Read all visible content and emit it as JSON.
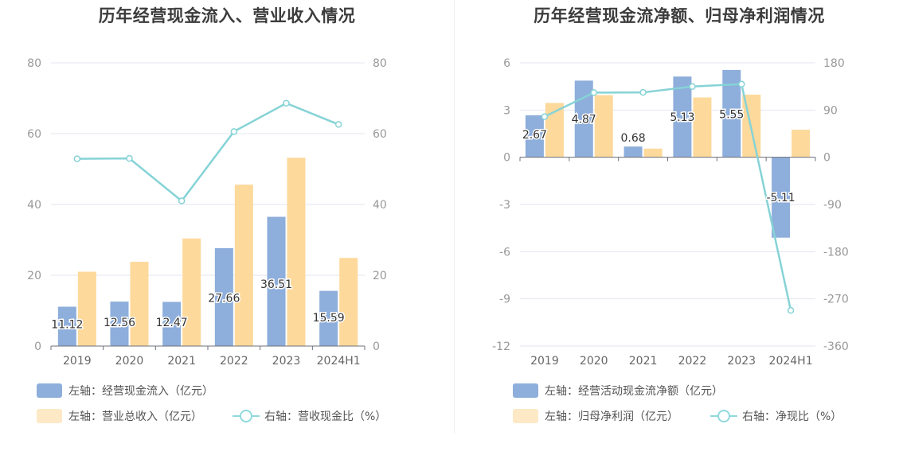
{
  "colors": {
    "bar1": "#8eaedb",
    "bar2": "#fdd99c",
    "line": "#86d3d6",
    "grid": "#e3e6ef",
    "axis": "#999999",
    "label": "#333333"
  },
  "chart_data": [
    {
      "type": "bar",
      "title": "历年经营现金流入、营业收入情况",
      "categories": [
        "2019",
        "2020",
        "2021",
        "2022",
        "2023",
        "2024H1"
      ],
      "y_left": {
        "min": 0,
        "max": 80,
        "ticks": [
          "0",
          "20",
          "40",
          "60",
          "80"
        ]
      },
      "y_right": {
        "min": 0,
        "max": 80,
        "ticks": [
          "0",
          "20",
          "40",
          "60",
          "80"
        ]
      },
      "series": [
        {
          "name": "左轴：经营现金流入（亿元）",
          "type": "bar",
          "axis": "left",
          "values": [
            11.12,
            12.56,
            12.47,
            27.66,
            36.51,
            15.59
          ],
          "labels": [
            "11.12",
            "12.56",
            "12.47",
            "27.66",
            "36.51",
            "15.59"
          ]
        },
        {
          "name": "左轴：营业总收入（亿元）",
          "type": "bar",
          "axis": "left",
          "values": [
            21.0,
            23.8,
            30.4,
            45.6,
            53.2,
            24.9
          ]
        },
        {
          "name": "右轴：营收现金比（%）",
          "type": "line",
          "axis": "right",
          "values": [
            52.9,
            53.0,
            41.0,
            60.6,
            68.6,
            62.6
          ]
        }
      ],
      "grid": true,
      "legend_position": "bottom-left"
    },
    {
      "type": "bar",
      "title": "历年经营现金流净额、归母净利润情况",
      "categories": [
        "2019",
        "2020",
        "2021",
        "2022",
        "2023",
        "2024H1"
      ],
      "y_left": {
        "min": -12,
        "max": 6,
        "ticks": [
          "-12",
          "-9",
          "-6",
          "-3",
          "0",
          "3",
          "6"
        ]
      },
      "y_right": {
        "min": -360,
        "max": 180,
        "ticks": [
          "-360",
          "-270",
          "-180",
          "-90",
          "0",
          "90",
          "180"
        ]
      },
      "series": [
        {
          "name": "左轴：经营活动现金流净额（亿元）",
          "type": "bar",
          "axis": "left",
          "values": [
            2.67,
            4.87,
            0.68,
            5.13,
            5.55,
            -5.11
          ],
          "labels": [
            "2.67",
            "4.87",
            "0.68",
            "5.13",
            "5.55",
            "-5.11"
          ]
        },
        {
          "name": "左轴：归母净利润（亿元）",
          "type": "bar",
          "axis": "left",
          "values": [
            3.45,
            3.95,
            0.55,
            3.8,
            3.98,
            1.75
          ]
        },
        {
          "name": "右轴：净现比（%）",
          "type": "line",
          "axis": "right",
          "values": [
            77.4,
            123.3,
            123.6,
            134.9,
            139.4,
            -292.0
          ]
        }
      ],
      "grid": true,
      "legend_position": "bottom-left"
    }
  ]
}
